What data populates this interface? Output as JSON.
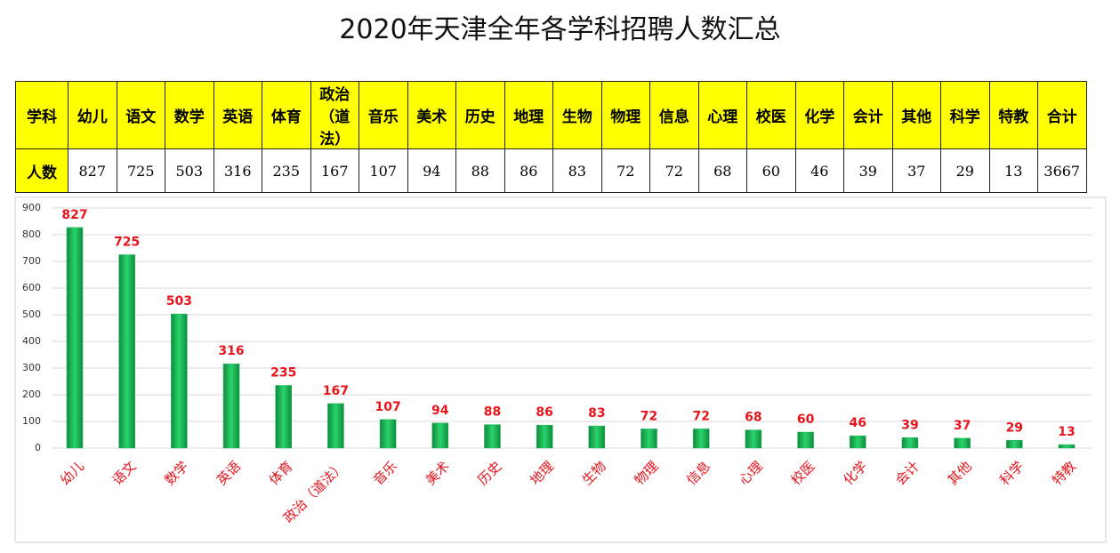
{
  "title": "2020年天津全年各学科招聘人数汇总",
  "table": {
    "header": [
      "学科",
      "幼儿",
      "语文",
      "数学",
      "英语",
      "体育",
      "政治（道法）",
      "音乐",
      "美术",
      "历史",
      "地理",
      "生物",
      "物理",
      "信息",
      "心理",
      "校医",
      "化学",
      "会计",
      "其他",
      "科学",
      "特教",
      "合计"
    ],
    "rows": [
      [
        "人数",
        "827",
        "725",
        "503",
        "316",
        "235",
        "167",
        "107",
        "94",
        "88",
        "86",
        "83",
        "72",
        "72",
        "68",
        "60",
        "46",
        "39",
        "37",
        "29",
        "13",
        "3667"
      ]
    ]
  },
  "chart_data": {
    "type": "bar",
    "categories": [
      "幼儿",
      "语文",
      "数学",
      "英语",
      "体育",
      "政治（道法）",
      "音乐",
      "美术",
      "历史",
      "地理",
      "生物",
      "物理",
      "信息",
      "心理",
      "校医",
      "化学",
      "会计",
      "其他",
      "科学",
      "特教"
    ],
    "values": [
      827,
      725,
      503,
      316,
      235,
      167,
      107,
      94,
      88,
      86,
      83,
      72,
      72,
      68,
      60,
      46,
      39,
      37,
      29,
      13
    ],
    "color": "#1fb85a",
    "ylim": [
      0,
      900
    ],
    "yticks": [
      0,
      100,
      200,
      300,
      400,
      500,
      600,
      700,
      800,
      900
    ],
    "grid": true
  }
}
